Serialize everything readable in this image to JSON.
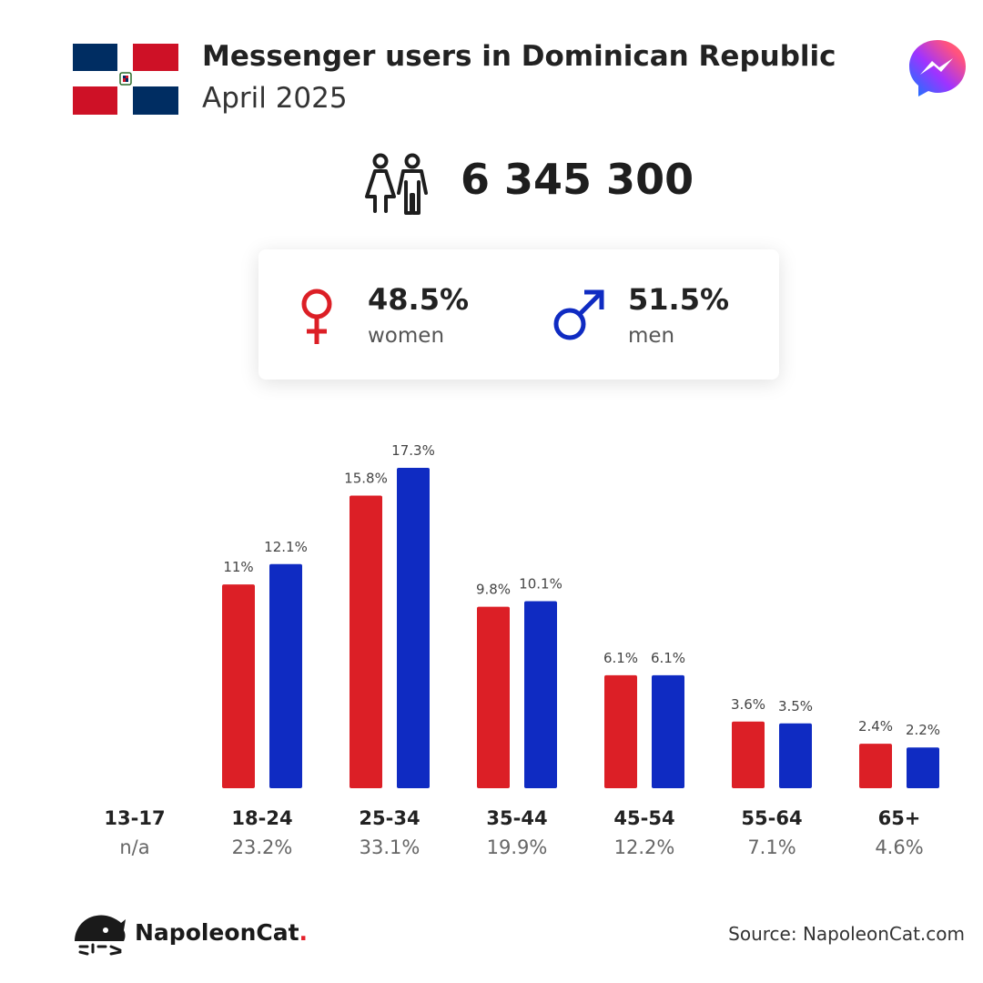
{
  "header": {
    "title": "Messenger users in Dominican Republic",
    "subtitle": "April 2025"
  },
  "summary": {
    "total_users": "6 345 300",
    "women_pct": "48.5%",
    "women_label": "women",
    "men_pct": "51.5%",
    "men_label": "men"
  },
  "colors": {
    "women": "#dc1f26",
    "men": "#0f2bc2",
    "flag_blue": "#002d62",
    "flag_red": "#ce1126"
  },
  "icons": [
    "dominican-republic-flag-icon",
    "messenger-logo-icon",
    "people-icon",
    "female-symbol-icon",
    "male-symbol-icon",
    "napoleoncat-logo-icon"
  ],
  "chart_data": {
    "type": "bar",
    "categories": [
      "13-17",
      "18-24",
      "25-34",
      "35-44",
      "45-54",
      "55-64",
      "65+"
    ],
    "category_totals": [
      "n/a",
      "23.2%",
      "33.1%",
      "19.9%",
      "12.2%",
      "7.1%",
      "4.6%"
    ],
    "series": [
      {
        "name": "women",
        "values": [
          null,
          11,
          15.8,
          9.8,
          6.1,
          3.6,
          2.4
        ],
        "labels": [
          "",
          "11%",
          "15.8%",
          "9.8%",
          "6.1%",
          "3.6%",
          "2.4%"
        ]
      },
      {
        "name": "men",
        "values": [
          null,
          12.1,
          17.3,
          10.1,
          6.1,
          3.5,
          2.2
        ],
        "labels": [
          "",
          "12.1%",
          "17.3%",
          "10.1%",
          "6.1%",
          "3.5%",
          "2.2%"
        ]
      }
    ],
    "ylim": [
      0,
      17.3
    ],
    "grid": false,
    "legend": "none"
  },
  "footer": {
    "brand": "NapoleonCat",
    "brand_dot": ".",
    "source": "Source: NapoleonCat.com"
  }
}
